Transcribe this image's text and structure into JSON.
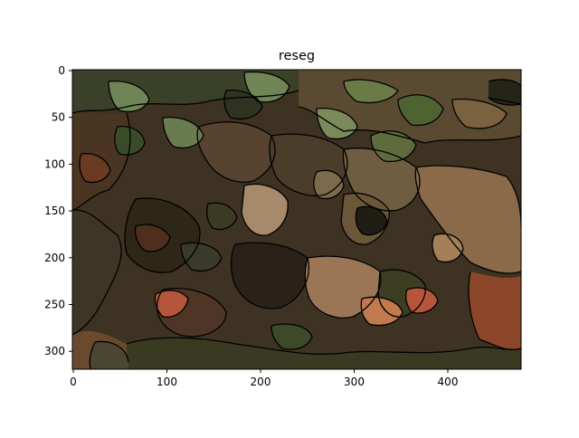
{
  "figure": {
    "title": "reseg",
    "x_ticks": [
      "0",
      "100",
      "200",
      "300",
      "400"
    ],
    "y_ticks": [
      "0",
      "50",
      "100",
      "150",
      "200",
      "250",
      "300"
    ],
    "image_description_palette": {
      "dark_olive": "#3b4129",
      "moss": "#5e6b3d",
      "sage": "#6f8556",
      "brown": "#5a4128",
      "tan": "#8a6a49",
      "light_tan": "#a78a6c",
      "rust": "#b5563a",
      "near_black": "#1a160f"
    }
  }
}
